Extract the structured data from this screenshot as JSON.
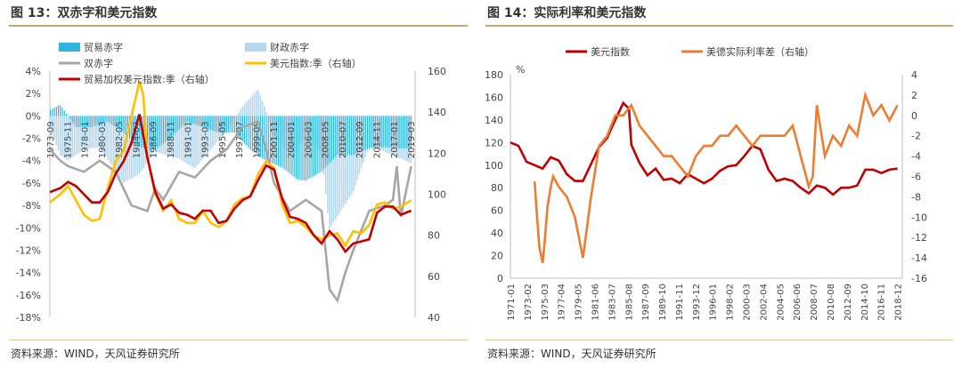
{
  "left": {
    "title": "图 13：双赤字和美元指数",
    "source": "资料来源：WIND，天风证券研究所"
  },
  "right": {
    "title": "图 14：实际利率和美元指数",
    "source": "资料来源：WIND，天风证券研究所"
  },
  "chart_data": [
    {
      "type": "bar",
      "title": "",
      "legend": [
        "贸易赤字",
        "财政赤字",
        "双赤字",
        "美元指数:季（右轴）",
        "贸易加权美元指数:季（右轴）"
      ],
      "x_ticks": [
        "1973-09",
        "1975-11",
        "1978-01",
        "1980-03",
        "1982-05",
        "1984-07",
        "1986-09",
        "1988-11",
        "1991-01",
        "1993-03",
        "1995-05",
        "1997-07",
        "1999-09",
        "2001-11",
        "2004-01",
        "2006-03",
        "2008-05",
        "2010-07",
        "2012-09",
        "2014-11",
        "2017-01",
        "2019-03"
      ],
      "y_left": {
        "min": -18,
        "max": 4,
        "ticks": [
          "4%",
          "2%",
          "0%",
          "-2%",
          "-4%",
          "-6%",
          "-8%",
          "-10%",
          "-12%",
          "-14%",
          "-16%",
          "-18%"
        ]
      },
      "y_right": {
        "min": 40,
        "max": 160,
        "ticks": [
          "160",
          "140",
          "120",
          "100",
          "80",
          "60",
          "40"
        ]
      },
      "colors": {
        "trade": "#2eb6e0",
        "fiscal": "#b6d8ee",
        "double": "#a6a6a6",
        "usd": "#ffc000",
        "twi": "#c00000"
      },
      "series": [
        {
          "name": "贸易赤字",
          "axis": "left",
          "x": [
            1973.7,
            1975,
            1977,
            1979,
            1981,
            1983,
            1985,
            1987,
            1989,
            1991,
            1993,
            1995,
            1997,
            1999,
            2001,
            2003,
            2005,
            2006,
            2008,
            2010,
            2012,
            2014,
            2016,
            2018,
            2019.3
          ],
          "values": [
            0.5,
            1.0,
            -1.0,
            -1.0,
            -0.5,
            -1.5,
            -2.8,
            -3.0,
            -2.0,
            -0.5,
            -1.0,
            -1.5,
            -1.5,
            -3.0,
            -4.0,
            -4.6,
            -5.7,
            -5.8,
            -5.0,
            -3.5,
            -3.5,
            -2.9,
            -2.8,
            -2.9,
            -2.9
          ]
        },
        {
          "name": "财政赤字",
          "axis": "left",
          "x": [
            1973.7,
            1975,
            1976,
            1978,
            1980,
            1983,
            1985,
            1987,
            1990,
            1992,
            1994,
            1996,
            1998,
            2000,
            2002,
            2004,
            2006,
            2008,
            2009,
            2010,
            2012,
            2014,
            2016,
            2018,
            2019.3
          ],
          "values": [
            -1.0,
            -3.5,
            -4.0,
            -3.0,
            -2.8,
            -6.0,
            -5.2,
            -3.2,
            -3.8,
            -4.7,
            -3.0,
            -1.4,
            0.8,
            2.4,
            -1.5,
            -3.6,
            -1.9,
            -3.2,
            -10.1,
            -9.0,
            -6.8,
            -2.8,
            -3.2,
            -3.8,
            -4.2
          ]
        },
        {
          "name": "双赤字",
          "axis": "left",
          "x": [
            1973.7,
            1975,
            1976,
            1978,
            1980,
            1982,
            1984,
            1986,
            1987,
            1988,
            1990,
            1992,
            1994,
            1996,
            1998,
            2000,
            2001,
            2002,
            2004,
            2006,
            2008,
            2009,
            2010,
            2011,
            2012,
            2014,
            2016,
            2017,
            2017.5,
            2018,
            2019.3
          ],
          "values": [
            -3.0,
            -4.0,
            -4.5,
            -5.0,
            -4.0,
            -5.0,
            -8.0,
            -8.5,
            -6.5,
            -7.5,
            -5.0,
            -5.5,
            -4.0,
            -3.0,
            -1.0,
            -0.5,
            -3.0,
            -6.0,
            -8.5,
            -7.5,
            -8.5,
            -15.5,
            -16.5,
            -14.0,
            -12.0,
            -8.5,
            -8.0,
            -7.5,
            -4.5,
            -9.0,
            -4.5
          ]
        }
      ],
      "line_series": [
        {
          "name": "美元指数:季（右轴）",
          "axis": "right",
          "x": [
            1973.7,
            1975,
            1976,
            1977,
            1978,
            1979,
            1980,
            1981,
            1982,
            1983,
            1984,
            1985,
            1985.5,
            1986,
            1987,
            1988,
            1989,
            1990,
            1991,
            1992,
            1993,
            1994,
            1995,
            1996,
            1997,
            1998,
            1999,
            2000,
            2001,
            2002,
            2003,
            2004,
            2005,
            2006,
            2007,
            2008,
            2009,
            2010,
            2011,
            2012,
            2013,
            2014,
            2015,
            2016,
            2017,
            2018,
            2019.3
          ],
          "values": [
            96,
            100,
            104,
            97,
            90,
            87,
            88,
            103,
            116,
            121,
            138,
            155,
            148,
            118,
            100,
            92,
            97,
            88,
            86,
            86,
            92,
            86,
            84,
            87,
            95,
            98,
            99,
            110,
            116,
            113,
            95,
            86,
            87,
            84,
            80,
            78,
            80,
            81,
            75,
            82,
            81,
            85,
            95,
            96,
            93,
            94,
            97
          ]
        },
        {
          "name": "贸易加权美元指数:季（右轴）",
          "axis": "right",
          "x": [
            1973.7,
            1975,
            1976,
            1977,
            1978,
            1979,
            1980,
            1981,
            1982,
            1983,
            1984,
            1985,
            1986,
            1987,
            1988,
            1989,
            1990,
            1991,
            1992,
            1993,
            1994,
            1995,
            1996,
            1997,
            1998,
            1999,
            2000,
            2001,
            2002,
            2003,
            2004,
            2005,
            2006,
            2007,
            2008,
            2009,
            2010,
            2011,
            2012,
            2013,
            2014,
            2015,
            2016,
            2017,
            2018,
            2019.3
          ],
          "values": [
            101,
            103,
            106,
            104,
            100,
            96,
            96,
            101,
            110,
            116,
            125,
            139,
            118,
            101,
            93,
            95,
            91,
            90,
            88,
            92,
            92,
            86,
            87,
            93,
            97,
            99,
            107,
            114,
            112,
            98,
            89,
            88,
            86,
            80,
            76,
            82,
            78,
            72,
            76,
            77,
            78,
            91,
            94,
            94,
            90,
            92
          ]
        }
      ]
    },
    {
      "type": "line",
      "title": "",
      "legend": [
        "美元指数",
        "美德实际利率差（右轴）"
      ],
      "y_left_unit": "%",
      "x_ticks": [
        "1971-01",
        "1973-02",
        "1975-03",
        "1977-04",
        "1979-05",
        "1981-06",
        "1983-07",
        "1985-08",
        "1987-09",
        "1989-10",
        "1991-11",
        "1993-12",
        "1996-01",
        "1998-02",
        "2000-03",
        "2002-04",
        "2004-05",
        "2006-06",
        "2008-07",
        "2010-08",
        "2012-09",
        "2014-10",
        "2016-11",
        "2018-12"
      ],
      "y_left": {
        "min": 0,
        "max": 180,
        "ticks": [
          "180",
          "160",
          "140",
          "120",
          "100",
          "80",
          "60",
          "40",
          "20",
          "0"
        ]
      },
      "y_right": {
        "min": -16,
        "max": 4,
        "ticks": [
          "4",
          "2",
          "0",
          "-2",
          "-4",
          "-6",
          "-8",
          "-10",
          "-12",
          "-14",
          "-16"
        ]
      },
      "colors": {
        "usd": "#c00000",
        "spread": "#ed7d31"
      },
      "series": [
        {
          "name": "美元指数",
          "axis": "left",
          "x": [
            1971.0,
            1972,
            1973,
            1974,
            1975,
            1976,
            1977,
            1978,
            1979,
            1980,
            1981,
            1982,
            1983,
            1984,
            1985,
            1985.7,
            1986,
            1987,
            1988,
            1989,
            1990,
            1991,
            1992,
            1993,
            1994,
            1995,
            1996,
            1997,
            1998,
            1999,
            2000,
            2001,
            2002,
            2003,
            2004,
            2005,
            2006,
            2007,
            2008,
            2009,
            2010,
            2011,
            2012,
            2013,
            2014,
            2015,
            2016,
            2017,
            2018,
            2019
          ],
          "values": [
            120,
            117,
            103,
            100,
            97,
            107,
            104,
            92,
            86,
            86,
            101,
            116,
            124,
            140,
            155,
            150,
            118,
            102,
            91,
            97,
            87,
            88,
            84,
            92,
            88,
            84,
            88,
            95,
            99,
            100,
            108,
            117,
            114,
            96,
            86,
            88,
            86,
            80,
            75,
            82,
            80,
            74,
            80,
            80,
            82,
            96,
            96,
            93,
            96,
            97
          ]
        },
        {
          "name": "美德实际利率差（右轴）",
          "axis": "right",
          "x": [
            1974.0,
            1974.3,
            1974.6,
            1975.0,
            1975.3,
            1975.6,
            1976.0,
            1976.3,
            1977,
            1978,
            1979,
            1980,
            1981,
            1982,
            1983,
            1984,
            1985,
            1986,
            1987,
            1988,
            1989,
            1990,
            1991,
            1992,
            1993,
            1994,
            1995,
            1996,
            1997,
            1998,
            1999,
            2000,
            2001,
            2002,
            2003,
            2004,
            2005,
            2006,
            2007,
            2008,
            2008.5,
            2009,
            2010,
            2011,
            2012,
            2013,
            2014,
            2015,
            2016,
            2017,
            2018,
            2019
          ],
          "values": [
            -6.5,
            -10,
            -13,
            -14.5,
            -12,
            -9,
            -7,
            -6,
            -7,
            -8,
            -10,
            -14,
            -8,
            -3,
            -2,
            0,
            0,
            1,
            -1,
            -2,
            -3,
            -4,
            -4,
            -5,
            -6,
            -4,
            -3,
            -3,
            -2,
            -2,
            -1,
            -2,
            -3,
            -2,
            -2,
            -2,
            -2,
            -1,
            -4,
            -7,
            -6,
            1,
            -4,
            -2,
            -3,
            -1,
            -2,
            2,
            0,
            1,
            -0.5,
            1
          ]
        }
      ]
    }
  ]
}
